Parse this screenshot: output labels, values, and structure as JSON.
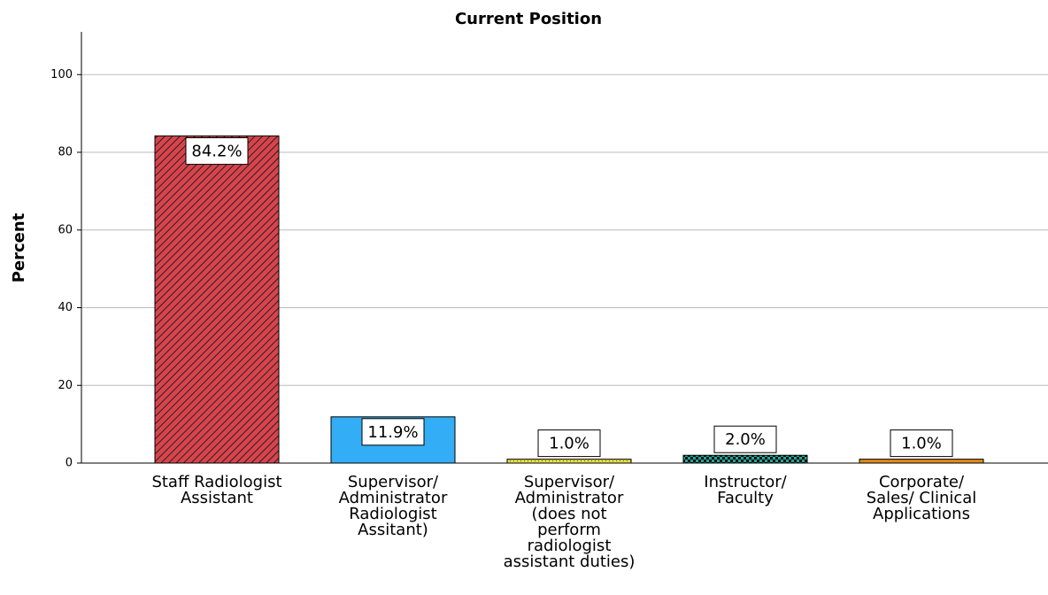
{
  "chart_data": {
    "type": "bar",
    "title": "Current Position",
    "y_label": "Percent",
    "categories": [
      "Staff Radiologist\nAssistant",
      "Supervisor/\nAdministrator\nRadiologist\nAssitant)",
      "Supervisor/\nAdministrator\n(does not\nperform\nradiologist\nassistant duties)",
      "Instructor/\nFaculty",
      "Corporate/\nSales/ Clinical\nApplications"
    ],
    "values": [
      84.2,
      11.9,
      1.0,
      2.0,
      1.0
    ],
    "value_labels": [
      "84.2%",
      "11.9%",
      "1.0%",
      "2.0%",
      "1.0%"
    ],
    "colors": [
      "#d9434b",
      "#33adf5",
      "#e6df45",
      "#1fa89a",
      "#e08a1e"
    ],
    "ylim": [
      0,
      111
    ],
    "yticks": [
      0,
      20,
      40,
      60,
      80,
      100
    ],
    "grid": true
  }
}
